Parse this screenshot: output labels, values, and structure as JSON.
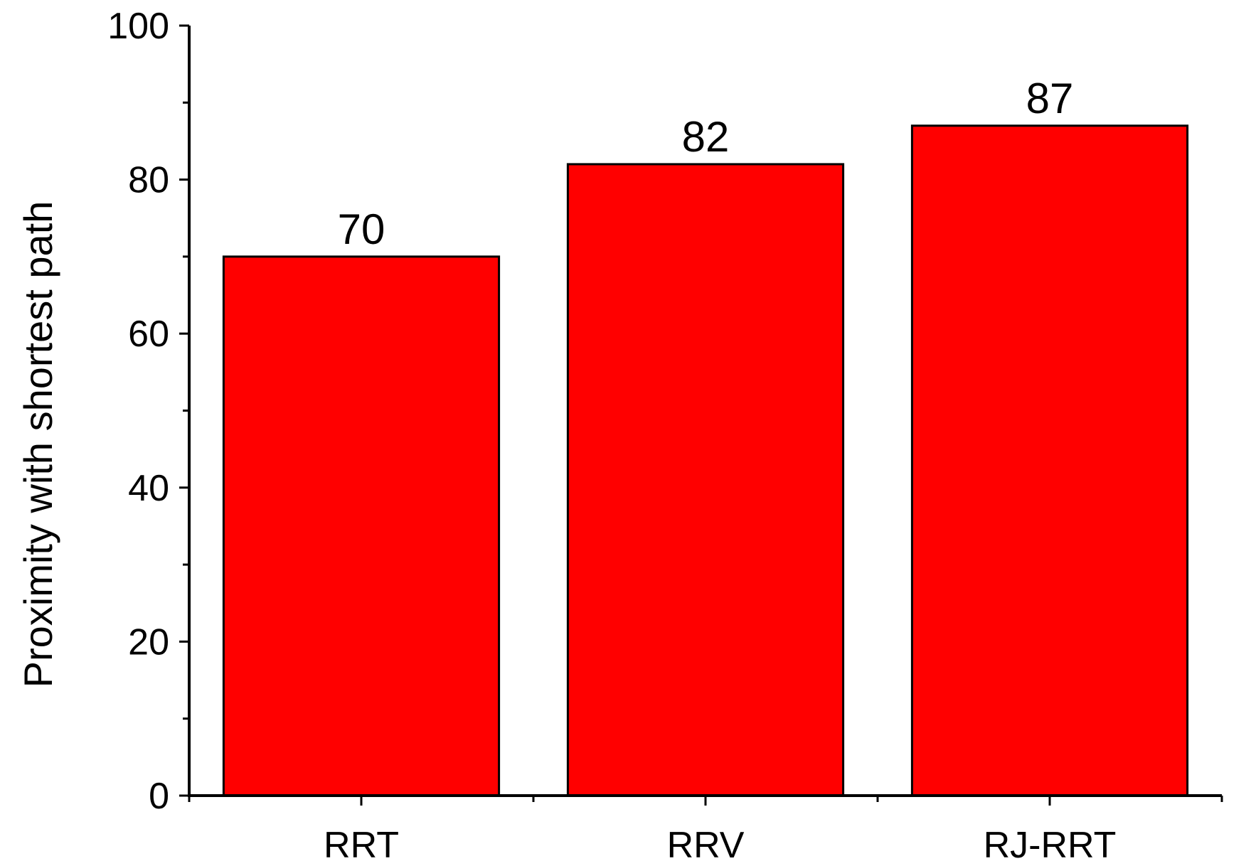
{
  "chart_data": {
    "type": "bar",
    "title": "",
    "xlabel": "",
    "ylabel": "Proximity with shortest path",
    "categories": [
      "RRT",
      "RRV",
      "RJ-RRT"
    ],
    "values": [
      70,
      82,
      87
    ],
    "data_labels": [
      "70",
      "82",
      "87"
    ],
    "ylim": [
      0,
      100
    ],
    "y_major_ticks": [
      0,
      20,
      40,
      60,
      80,
      100
    ],
    "y_tick_labels": [
      "0",
      "20",
      "40",
      "60",
      "80",
      "100"
    ],
    "y_minor_ticks": [
      10,
      30,
      50,
      70,
      90
    ],
    "grid": false,
    "legend": "none",
    "colors": {
      "bar_fill": "#ff0000",
      "bar_stroke": "#000000",
      "axis": "#000000",
      "text": "#000000",
      "background": "#ffffff"
    }
  }
}
